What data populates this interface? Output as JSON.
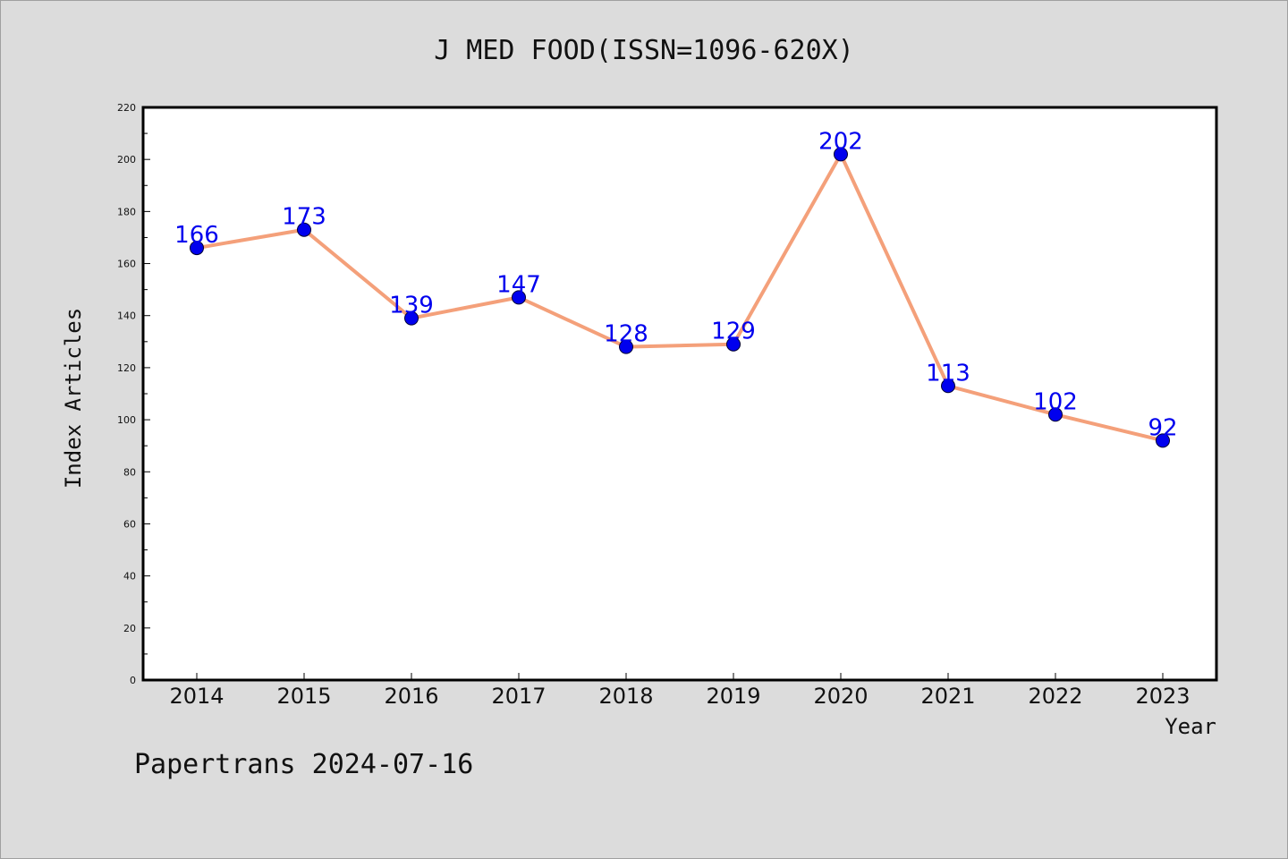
{
  "chart_data": {
    "type": "line",
    "title": "J MED FOOD(ISSN=1096-620X)",
    "xlabel": "Year",
    "ylabel": "Index Articles",
    "categories": [
      "2014",
      "2015",
      "2016",
      "2017",
      "2018",
      "2019",
      "2020",
      "2021",
      "2022",
      "2023"
    ],
    "series": [
      {
        "values": [
          166,
          173,
          139,
          147,
          128,
          129,
          202,
          113,
          102,
          92
        ]
      }
    ],
    "ylim": [
      0,
      220
    ],
    "yticks": [
      0,
      20,
      40,
      60,
      80,
      100,
      120,
      140,
      160,
      180,
      200,
      220
    ],
    "grid": false,
    "line_color": "#f4a07a",
    "marker_color": "#0000ee",
    "label_color": "#0000ee"
  },
  "footer": {
    "text": "Papertrans 2024-07-16"
  }
}
